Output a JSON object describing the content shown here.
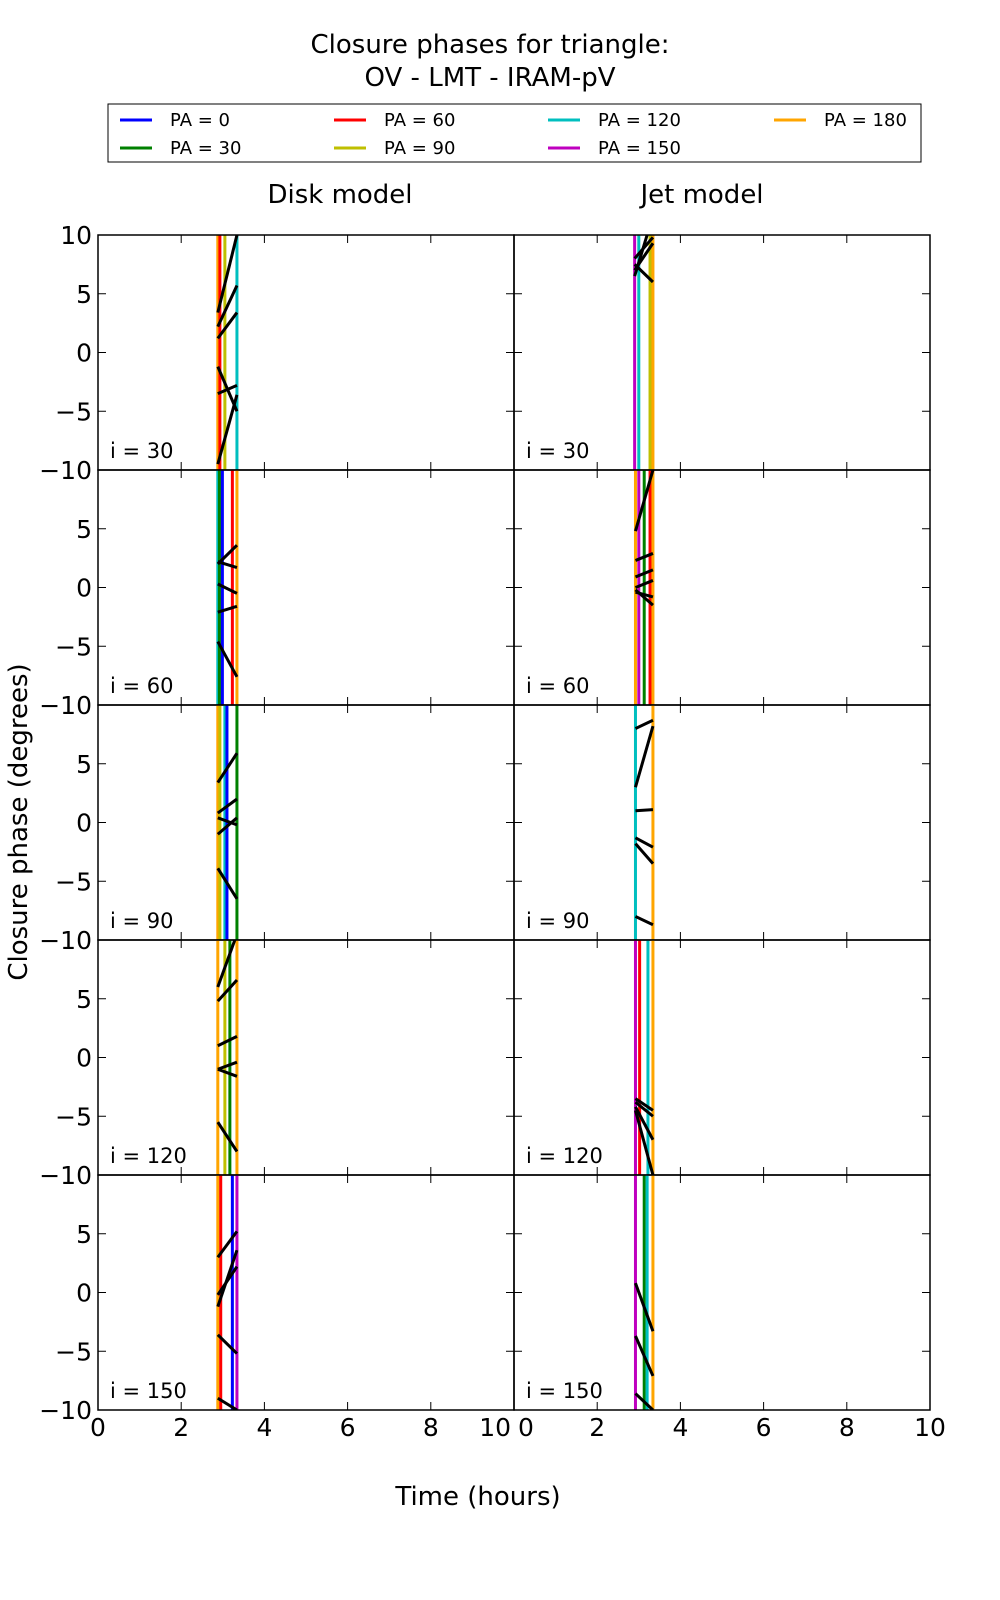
{
  "chart_data": {
    "type": "line",
    "title": "Closure phases for triangle:",
    "subtitle": "OV - LMT - IRAM-pV",
    "xlabel": "Time (hours)",
    "ylabel": "Closure phase (degrees)",
    "xlim": [
      0,
      10
    ],
    "ylim": [
      -10,
      10
    ],
    "xticks": [
      "0",
      "2",
      "4",
      "6",
      "8",
      "10"
    ],
    "yticks": [
      "−10",
      "−5",
      "0",
      "5",
      "10"
    ],
    "grid": false,
    "legend_placement": "top",
    "legend": [
      {
        "label": "PA = 0",
        "color": "#0000ff"
      },
      {
        "label": "PA = 30",
        "color": "#008000"
      },
      {
        "label": "PA = 60",
        "color": "#ff0000"
      },
      {
        "label": "PA = 90",
        "color": "#bfbf00"
      },
      {
        "label": "PA = 120",
        "color": "#00bfbf"
      },
      {
        "label": "PA = 150",
        "color": "#bf00bf"
      },
      {
        "label": "PA = 180",
        "color": "#ffa500"
      }
    ],
    "columns": [
      "Disk model",
      "Jet model"
    ],
    "rows": [
      "i = 30",
      "i = 60",
      "i = 90",
      "i = 120",
      "i = 150"
    ],
    "panels": [
      [
        {
          "vlines": [
            [
              180,
              2.88
            ],
            [
              60,
              2.93
            ],
            [
              90,
              3.05
            ],
            [
              120,
              3.34
            ]
          ],
          "segments": [
            [
              2.88,
              3.4,
              3.34,
              10
            ],
            [
              2.88,
              2.2,
              3.34,
              5.7
            ],
            [
              2.88,
              1.2,
              3.34,
              3.4
            ],
            [
              2.88,
              -1.2,
              3.34,
              -5.0
            ],
            [
              2.88,
              -3.5,
              3.34,
              -2.8
            ],
            [
              2.88,
              -9.5,
              3.34,
              -3.6
            ]
          ]
        },
        {
          "vlines": [
            [
              120,
              2.88
            ],
            [
              30,
              2.92
            ],
            [
              0,
              2.99
            ],
            [
              60,
              3.23
            ],
            [
              180,
              3.34
            ]
          ],
          "segments": [
            [
              2.88,
              2.0,
              3.34,
              3.6
            ],
            [
              2.88,
              2.2,
              3.34,
              1.7
            ],
            [
              2.88,
              0.3,
              3.34,
              -0.5
            ],
            [
              2.88,
              -2.1,
              3.34,
              -1.6
            ],
            [
              2.88,
              -4.6,
              3.34,
              -7.6
            ]
          ]
        },
        {
          "vlines": [
            [
              180,
              2.88
            ],
            [
              90,
              2.93
            ],
            [
              120,
              3.05
            ],
            [
              0,
              3.1
            ],
            [
              30,
              3.34
            ]
          ],
          "segments": [
            [
              2.88,
              3.4,
              3.34,
              5.9
            ],
            [
              2.88,
              0.8,
              3.34,
              2.0
            ],
            [
              2.88,
              -1.0,
              3.34,
              0.4
            ],
            [
              2.88,
              0.4,
              3.34,
              -0.2
            ],
            [
              2.88,
              -3.9,
              3.34,
              -6.5
            ]
          ]
        },
        {
          "vlines": [
            [
              180,
              2.88
            ],
            [
              90,
              3.05
            ],
            [
              30,
              3.17
            ],
            [
              180,
              3.34
            ]
          ],
          "segments": [
            [
              2.88,
              6.0,
              3.34,
              10.5
            ],
            [
              2.88,
              4.8,
              3.34,
              6.6
            ],
            [
              2.88,
              1.0,
              3.34,
              1.8
            ],
            [
              2.88,
              -1.0,
              3.34,
              -0.4
            ],
            [
              2.88,
              -1.0,
              3.34,
              -1.6
            ],
            [
              2.88,
              -5.5,
              3.34,
              -8.0
            ]
          ]
        },
        {
          "vlines": [
            [
              180,
              2.88
            ],
            [
              60,
              2.95
            ],
            [
              0,
              3.23
            ],
            [
              150,
              3.34
            ]
          ],
          "segments": [
            [
              2.88,
              3.0,
              3.34,
              5.2
            ],
            [
              2.88,
              -0.2,
              3.34,
              2.2
            ],
            [
              2.88,
              -1.2,
              3.34,
              3.6
            ],
            [
              2.88,
              -3.6,
              3.34,
              -5.2
            ],
            [
              2.88,
              -9.0,
              3.34,
              -10
            ]
          ]
        }
      ],
      [
        {
          "vlines": [
            [
              150,
              2.9
            ],
            [
              120,
              3.0
            ],
            [
              90,
              3.27
            ],
            [
              180,
              3.34
            ]
          ],
          "segments": [
            [
              2.9,
              8.0,
              3.34,
              9.8
            ],
            [
              2.9,
              7.0,
              3.34,
              9.3
            ],
            [
              2.9,
              7.5,
              3.34,
              6.0
            ],
            [
              2.9,
              6.5,
              3.2,
              10
            ]
          ]
        },
        {
          "vlines": [
            [
              180,
              2.92
            ],
            [
              150,
              3.0
            ],
            [
              30,
              3.13
            ],
            [
              60,
              3.27
            ],
            [
              180,
              3.34
            ]
          ],
          "segments": [
            [
              2.92,
              4.8,
              3.34,
              10
            ],
            [
              2.92,
              2.3,
              3.34,
              2.9
            ],
            [
              2.92,
              0.9,
              3.34,
              1.5
            ],
            [
              2.92,
              0.0,
              3.34,
              0.6
            ],
            [
              2.92,
              -0.4,
              3.34,
              -0.8
            ],
            [
              2.92,
              -0.2,
              3.34,
              -1.5
            ]
          ]
        },
        {
          "vlines": [
            [
              120,
              2.92
            ],
            [
              180,
              3.34
            ]
          ],
          "segments": [
            [
              2.92,
              8.0,
              3.34,
              8.7
            ],
            [
              2.92,
              3.0,
              3.34,
              8.2
            ],
            [
              2.92,
              1.0,
              3.34,
              1.1
            ],
            [
              2.92,
              -1.3,
              3.34,
              -2.1
            ],
            [
              2.92,
              -1.8,
              3.34,
              -3.5
            ],
            [
              2.92,
              -8.0,
              3.34,
              -8.7
            ]
          ]
        },
        {
          "vlines": [
            [
              150,
              2.92
            ],
            [
              60,
              3.02
            ],
            [
              120,
              3.22
            ],
            [
              180,
              3.34
            ]
          ],
          "segments": [
            [
              2.92,
              -3.5,
              3.34,
              -4.5
            ],
            [
              2.92,
              -3.8,
              3.34,
              -5.0
            ],
            [
              2.92,
              -4.2,
              3.34,
              -7.0
            ],
            [
              2.92,
              -4.5,
              3.34,
              -10
            ]
          ]
        },
        {
          "vlines": [
            [
              150,
              2.92
            ],
            [
              30,
              3.13
            ],
            [
              120,
              3.2
            ],
            [
              180,
              3.34
            ]
          ],
          "segments": [
            [
              2.92,
              0.8,
              3.34,
              -3.3
            ],
            [
              2.92,
              -3.7,
              3.34,
              -7.1
            ],
            [
              2.92,
              -8.6,
              3.34,
              -10
            ]
          ]
        }
      ]
    ]
  }
}
